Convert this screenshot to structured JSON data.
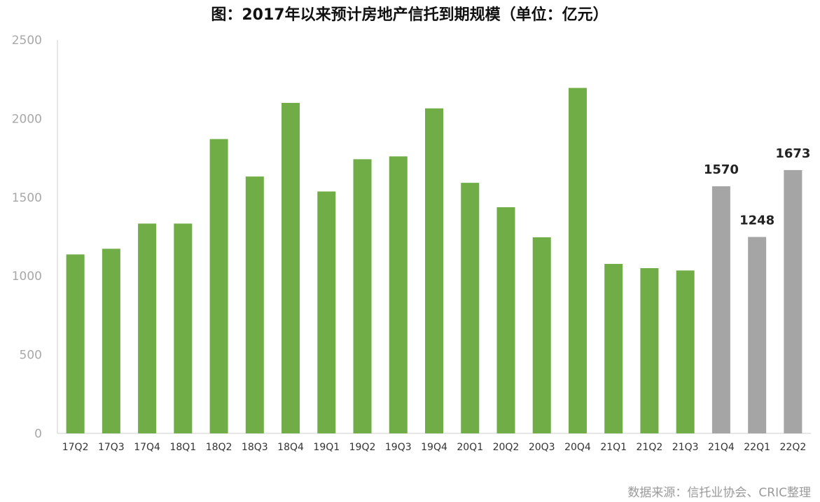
{
  "chart_data": {
    "type": "bar",
    "title": "图：2017年以来预计房地产信托到期规模（单位：亿元）",
    "xlabel": "",
    "ylabel": "",
    "ylim": [
      0,
      2500
    ],
    "yticks": [
      "0",
      "500",
      "1000",
      "1500",
      "2000",
      "2500"
    ],
    "grid": false,
    "categories": [
      "17Q2",
      "17Q3",
      "17Q4",
      "18Q1",
      "18Q2",
      "18Q3",
      "18Q4",
      "19Q1",
      "19Q2",
      "19Q3",
      "19Q4",
      "20Q1",
      "20Q2",
      "20Q3",
      "20Q4",
      "21Q1",
      "21Q2",
      "21Q3",
      "21Q4",
      "22Q1",
      "22Q2"
    ],
    "values": [
      1137,
      1173,
      1333,
      1333,
      1870,
      1632,
      2100,
      1537,
      1742,
      1760,
      2065,
      1592,
      1437,
      1246,
      2195,
      1077,
      1050,
      1035,
      1570,
      1248,
      1673
    ],
    "bar_colors": [
      "#70ad47",
      "#70ad47",
      "#70ad47",
      "#70ad47",
      "#70ad47",
      "#70ad47",
      "#70ad47",
      "#70ad47",
      "#70ad47",
      "#70ad47",
      "#70ad47",
      "#70ad47",
      "#70ad47",
      "#70ad47",
      "#70ad47",
      "#70ad47",
      "#70ad47",
      "#70ad47",
      "#a5a5a5",
      "#a5a5a5",
      "#a5a5a5"
    ],
    "data_labels": [
      {
        "category": "21Q4",
        "text": "1570"
      },
      {
        "category": "22Q1",
        "text": "1248"
      },
      {
        "category": "22Q2",
        "text": "1673"
      }
    ],
    "source": "数据来源：信托业协会、CRIC整理"
  }
}
